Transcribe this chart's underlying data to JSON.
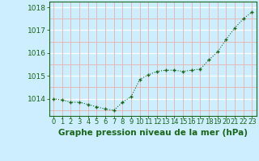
{
  "x": [
    0,
    1,
    2,
    3,
    4,
    5,
    6,
    7,
    8,
    9,
    10,
    11,
    12,
    13,
    14,
    15,
    16,
    17,
    18,
    19,
    20,
    21,
    22,
    23
  ],
  "y": [
    1014.0,
    1013.95,
    1013.85,
    1013.85,
    1013.75,
    1013.65,
    1013.55,
    1013.5,
    1013.85,
    1014.1,
    1014.85,
    1015.05,
    1015.2,
    1015.25,
    1015.25,
    1015.2,
    1015.25,
    1015.3,
    1015.7,
    1016.05,
    1016.6,
    1017.1,
    1017.5,
    1017.8
  ],
  "line_color": "#1a6618",
  "marker_color": "#1a6618",
  "bg_color": "#cceeff",
  "plot_bg_color": "#cceeff",
  "grid_color_major": "#ffffff",
  "grid_color_minor": "#e8b0b0",
  "xlabel": "Graphe pression niveau de la mer (hPa)",
  "xlabel_color": "#1a6618",
  "ylabel_ticks": [
    1014,
    1015,
    1016,
    1017,
    1018
  ],
  "xtick_labels": [
    "0",
    "1",
    "2",
    "3",
    "4",
    "5",
    "6",
    "7",
    "8",
    "9",
    "10",
    "11",
    "12",
    "13",
    "14",
    "15",
    "16",
    "17",
    "18",
    "19",
    "20",
    "21",
    "22",
    "23"
  ],
  "ylim": [
    1013.25,
    1018.25
  ],
  "xlim": [
    -0.5,
    23.5
  ],
  "tick_color": "#1a6618",
  "font_size_xlabel": 7.5,
  "font_size_ticks": 6.5,
  "marker_size": 3.5,
  "line_width": 0.8
}
